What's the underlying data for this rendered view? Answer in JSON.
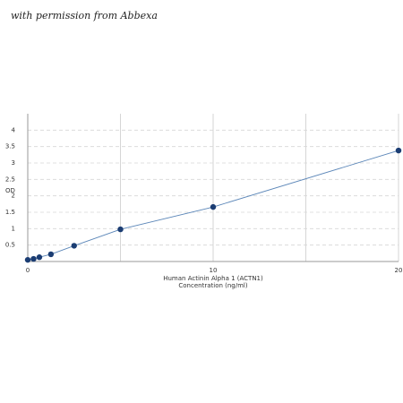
{
  "chart_data": {
    "type": "line",
    "watermark": "with permission from Abbexa",
    "y_label": "OD",
    "x_label": [
      "Human Actinin Alpha 1 (ACTN1)",
      "Concentration (ng/ml)"
    ],
    "x": [
      0,
      0.3125,
      0.625,
      1.25,
      2.5,
      5,
      10,
      20
    ],
    "series": [
      {
        "color": "#1b3d73",
        "line_color": "#5b86b8",
        "values": [
          0.05,
          0.08,
          0.13,
          0.22,
          0.48,
          0.98,
          1.66,
          3.38
        ]
      }
    ],
    "xlim": [
      0,
      20
    ],
    "xticks": [
      0,
      10,
      20
    ],
    "xgrid": [
      5,
      10,
      15,
      20
    ],
    "ylim": [
      0,
      4.5
    ],
    "yticks": [
      0.5,
      1,
      1.5,
      2,
      2.5,
      3,
      3.5,
      4
    ],
    "grid": true
  }
}
